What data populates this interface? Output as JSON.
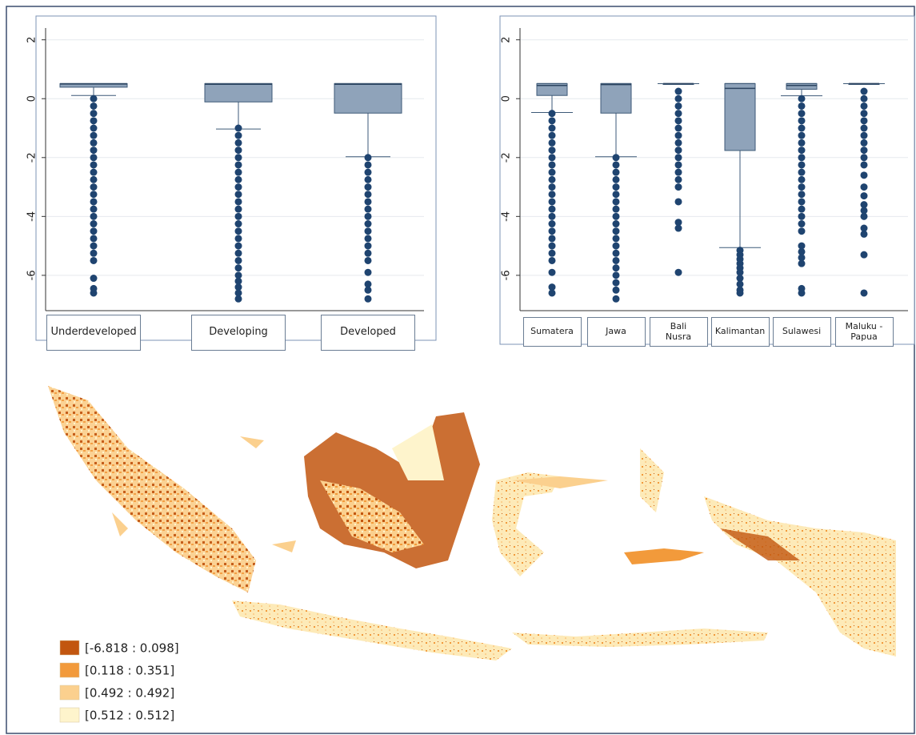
{
  "chart_data": [
    {
      "type": "box",
      "categories": [
        "Underdeveloped",
        "Developing",
        "Developed"
      ],
      "ylim": [
        -7.2,
        2.4
      ],
      "yticks": [
        2,
        0,
        -2,
        -4,
        -6
      ],
      "grid": true,
      "color": "#8fa3ba",
      "outlier_color": "#1f4470",
      "boxes": [
        {
          "q1": 0.39,
          "median": 0.5,
          "q3": 0.51,
          "whisker_low": 0.11,
          "whisker_high": 0.51,
          "outliers": [
            0,
            -0.25,
            -0.5,
            -0.75,
            -1,
            -1.25,
            -1.5,
            -1.75,
            -2,
            -2.25,
            -2.5,
            -2.75,
            -3,
            -3.25,
            -3.5,
            -3.75,
            -4,
            -4.25,
            -4.5,
            -4.75,
            -5,
            -5.25,
            -5.5,
            -6.1,
            -6.45,
            -6.6
          ]
        },
        {
          "q1": -0.11,
          "median": 0.49,
          "q3": 0.51,
          "whisker_low": -1.03,
          "whisker_high": 0.51,
          "outliers": [
            -1,
            -1.25,
            -1.5,
            -1.75,
            -2,
            -2.25,
            -2.5,
            -2.75,
            -3,
            -3.25,
            -3.5,
            -3.75,
            -4,
            -4.25,
            -4.5,
            -4.75,
            -5,
            -5.25,
            -5.5,
            -5.75,
            -6,
            -6.2,
            -6.4,
            -6.6,
            -6.8
          ]
        },
        {
          "q1": -0.49,
          "median": 0.49,
          "q3": 0.51,
          "whisker_low": -1.97,
          "whisker_high": 0.51,
          "outliers": [
            -2,
            -2.25,
            -2.5,
            -2.75,
            -3,
            -3.25,
            -3.5,
            -3.75,
            -4,
            -4.25,
            -4.5,
            -4.75,
            -5,
            -5.25,
            -5.5,
            -5.9,
            -6.3,
            -6.5,
            -6.8
          ]
        }
      ]
    },
    {
      "type": "box",
      "categories": [
        "Sumatera",
        "Jawa",
        "Bali Nusra",
        "Kalimantan",
        "Sulawesi",
        "Maluku - Papua"
      ],
      "ylim": [
        -7.2,
        2.4
      ],
      "yticks": [
        2,
        0,
        -2,
        -4,
        -6
      ],
      "grid": true,
      "color": "#8fa3ba",
      "outlier_color": "#1f4470",
      "boxes": [
        {
          "q1": 0.11,
          "median": 0.45,
          "q3": 0.51,
          "whisker_low": -0.47,
          "whisker_high": 0.51,
          "outliers": [
            -0.5,
            -0.75,
            -1,
            -1.25,
            -1.5,
            -1.75,
            -2,
            -2.25,
            -2.5,
            -2.75,
            -3,
            -3.25,
            -3.5,
            -3.75,
            -4,
            -4.25,
            -4.5,
            -4.75,
            -5,
            -5.25,
            -5.5,
            -5.9,
            -6.4,
            -6.6
          ]
        },
        {
          "q1": -0.49,
          "median": 0.48,
          "q3": 0.51,
          "whisker_low": -1.97,
          "whisker_high": 0.51,
          "outliers": [
            -2,
            -2.25,
            -2.5,
            -2.75,
            -3,
            -3.25,
            -3.5,
            -3.75,
            -4,
            -4.25,
            -4.5,
            -4.75,
            -5,
            -5.25,
            -5.5,
            -5.75,
            -6,
            -6.25,
            -6.5,
            -6.8
          ]
        },
        {
          "q1": 0.51,
          "median": 0.51,
          "q3": 0.51,
          "whisker_low": 0.51,
          "whisker_high": 0.51,
          "outliers": [
            0.25,
            0,
            -0.25,
            -0.5,
            -0.75,
            -1,
            -1.25,
            -1.5,
            -1.75,
            -2,
            -2.25,
            -2.5,
            -2.75,
            -3,
            -3.5,
            -4.2,
            -4.4,
            -5.9
          ]
        },
        {
          "q1": -1.76,
          "median": 0.35,
          "q3": 0.51,
          "whisker_low": -5.06,
          "whisker_high": 0.51,
          "outliers": [
            -5.15,
            -5.3,
            -5.45,
            -5.6,
            -5.75,
            -5.9,
            -6.1,
            -6.3,
            -6.5,
            -6.6
          ]
        },
        {
          "q1": 0.32,
          "median": 0.45,
          "q3": 0.51,
          "whisker_low": 0.1,
          "whisker_high": 0.51,
          "outliers": [
            0,
            -0.25,
            -0.5,
            -0.75,
            -1,
            -1.25,
            -1.5,
            -1.75,
            -2,
            -2.25,
            -2.5,
            -2.75,
            -3,
            -3.25,
            -3.5,
            -3.75,
            -4,
            -4.25,
            -4.5,
            -5,
            -5.2,
            -5.4,
            -5.6,
            -6.45,
            -6.6
          ]
        },
        {
          "q1": 0.51,
          "median": 0.51,
          "q3": 0.51,
          "whisker_low": 0.51,
          "whisker_high": 0.51,
          "outliers": [
            0.25,
            0,
            -0.25,
            -0.5,
            -0.75,
            -1,
            -1.25,
            -1.5,
            -1.75,
            -2,
            -2.25,
            -2.6,
            -3,
            -3.3,
            -3.6,
            -3.8,
            -4,
            -4.4,
            -4.6,
            -5.3,
            -6.6
          ]
        }
      ]
    }
  ],
  "map": {
    "legend": [
      {
        "label": "[-6.818 : 0.098]",
        "color": "#c2560f"
      },
      {
        "label": "[0.118 : 0.351]",
        "color": "#f29a3b"
      },
      {
        "label": "[0.492 : 0.492]",
        "color": "#fbd08e"
      },
      {
        "label": "[0.512 : 0.512]",
        "color": "#fef4cc"
      }
    ]
  }
}
